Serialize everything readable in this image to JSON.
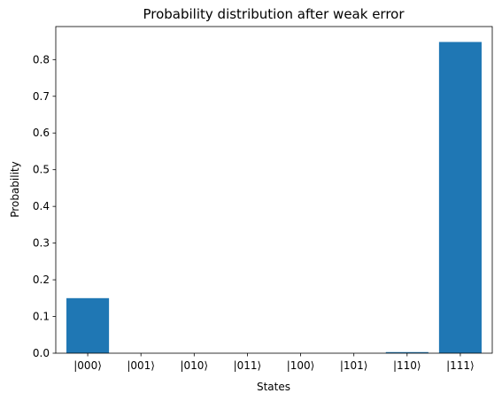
{
  "chart_data": {
    "type": "bar",
    "title": "Probability distribution after weak error",
    "xlabel": "States",
    "ylabel": "Probability",
    "categories": [
      "|000⟩",
      "|001⟩",
      "|010⟩",
      "|011⟩",
      "|100⟩",
      "|101⟩",
      "|110⟩",
      "|111⟩"
    ],
    "values": [
      0.15,
      0.0,
      0.0,
      0.0,
      0.0,
      0.0,
      0.003,
      0.848
    ],
    "ylim": [
      0,
      0.89
    ],
    "yticks": [
      0.0,
      0.1,
      0.2,
      0.3,
      0.4,
      0.5,
      0.6,
      0.7,
      0.8
    ],
    "ytick_labels": [
      "0.0",
      "0.1",
      "0.2",
      "0.3",
      "0.4",
      "0.5",
      "0.6",
      "0.7",
      "0.8"
    ],
    "bar_color": "#1f77b4",
    "grid": false,
    "legend": "none"
  }
}
